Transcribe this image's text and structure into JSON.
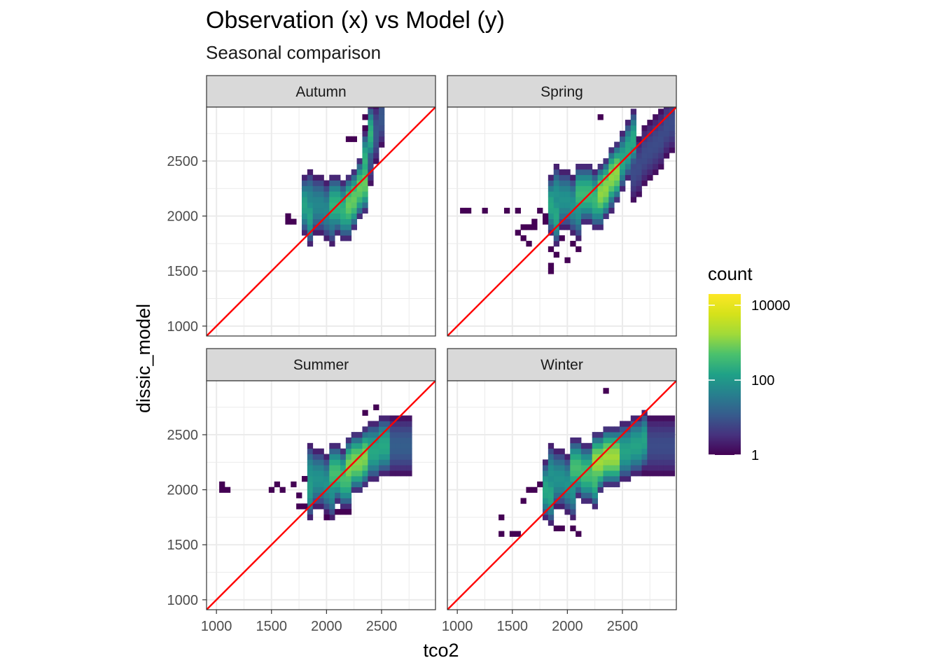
{
  "chart_data": {
    "type": "heatmap",
    "title": "Observation (x) vs Model (y)",
    "subtitle": "Seasonal comparison",
    "xlabel": "tco2",
    "ylabel": "dissic_model",
    "xlim": [
      910,
      2990
    ],
    "ylim": [
      910,
      2990
    ],
    "x_ticks": [
      1000,
      1500,
      2000,
      2500
    ],
    "y_ticks": [
      1000,
      1500,
      2000,
      2500
    ],
    "x_tick_labels": [
      "1000",
      "1500",
      "2000",
      "2500"
    ],
    "y_tick_labels": [
      "1000",
      "1500",
      "2000",
      "2500"
    ],
    "grid": true,
    "reference_line": {
      "slope": 1,
      "intercept": 0,
      "color": "#ff0000"
    },
    "bin_width": 50,
    "legend": {
      "title": "count",
      "scale": "log10",
      "breaks": [
        1,
        100,
        10000
      ],
      "break_labels": [
        "1",
        "100",
        "10000"
      ],
      "placement": "right",
      "colormap": "viridis"
    },
    "panels": [
      {
        "name": "Autumn",
        "cells": [
          [
            1800,
            1850,
            2100,
            2000,
            2.5,
            5
          ],
          [
            1850,
            2050,
            2150,
            2000,
            2.0,
            5
          ],
          [
            2050,
            2200,
            2100,
            2050,
            2.8,
            5
          ],
          [
            2200,
            2350,
            2100,
            2300,
            3.3,
            5
          ],
          [
            2300,
            2400,
            2250,
            2750,
            2.8,
            5
          ],
          [
            2380,
            2500,
            2550,
            2900,
            1.2,
            5
          ]
        ],
        "extra": [
          [
            1630,
            2000,
            0
          ],
          [
            1660,
            1970,
            0
          ],
          [
            1700,
            1930,
            0
          ],
          [
            1780,
            1860,
            0
          ],
          [
            1910,
            2030,
            0
          ],
          [
            1950,
            2060,
            0
          ],
          [
            2010,
            1820,
            0
          ],
          [
            2210,
            2690,
            0
          ],
          [
            2260,
            2720,
            0
          ],
          [
            2330,
            2880,
            0
          ],
          [
            2360,
            2820,
            0
          ]
        ]
      },
      {
        "name": "Spring",
        "cells": [
          [
            1850,
            1900,
            2100,
            2000,
            2.6,
            5
          ],
          [
            1900,
            2100,
            2200,
            2050,
            2.2,
            5
          ],
          [
            2100,
            2300,
            2200,
            2150,
            2.9,
            5
          ],
          [
            2300,
            2450,
            2200,
            2400,
            3.6,
            5
          ],
          [
            2400,
            2600,
            2300,
            2700,
            2.6,
            5
          ],
          [
            2600,
            2950,
            2400,
            2850,
            1.0,
            5
          ]
        ],
        "extra": [
          [
            1050,
            2030,
            0
          ],
          [
            1090,
            2030,
            0
          ],
          [
            1250,
            2030,
            0
          ],
          [
            1450,
            2030,
            0
          ],
          [
            1550,
            2030,
            0
          ],
          [
            1600,
            1900,
            0
          ],
          [
            1650,
            1900,
            0
          ],
          [
            1700,
            1950,
            0
          ],
          [
            1550,
            1850,
            0
          ],
          [
            1600,
            1820,
            0
          ],
          [
            1670,
            1760,
            0
          ],
          [
            1700,
            1880,
            0
          ],
          [
            1750,
            2070,
            0
          ],
          [
            1780,
            2020,
            0
          ],
          [
            1830,
            2120,
            0
          ],
          [
            1790,
            1960,
            0
          ],
          [
            1850,
            1710,
            0
          ],
          [
            1900,
            1640,
            0
          ],
          [
            1870,
            1560,
            0
          ],
          [
            1920,
            1810,
            0
          ],
          [
            1970,
            1780,
            0
          ],
          [
            2000,
            1620,
            0
          ],
          [
            2050,
            1760,
            0
          ],
          [
            2100,
            1700,
            0
          ],
          [
            1850,
            1500,
            0
          ],
          [
            1980,
            1580,
            0
          ],
          [
            2380,
            2200,
            0
          ],
          [
            2400,
            2450,
            0
          ],
          [
            2300,
            2920,
            0
          ]
        ]
      },
      {
        "name": "Summer",
        "cells": [
          [
            1830,
            1850,
            2050,
            2000,
            2.4,
            5
          ],
          [
            1850,
            2050,
            2150,
            2000,
            2.2,
            5
          ],
          [
            2050,
            2200,
            2150,
            2100,
            3.0,
            5
          ],
          [
            2200,
            2350,
            2200,
            2300,
            3.5,
            5
          ],
          [
            2350,
            2550,
            2300,
            2400,
            2.6,
            5
          ],
          [
            2550,
            2750,
            2400,
            2400,
            1.3,
            5
          ]
        ],
        "extra": [
          [
            1070,
            2030,
            0
          ],
          [
            1110,
            1980,
            0
          ],
          [
            1070,
            1980,
            0
          ],
          [
            1490,
            1980,
            0
          ],
          [
            1560,
            2030,
            0
          ],
          [
            1580,
            1980,
            0
          ],
          [
            1750,
            1830,
            0
          ],
          [
            1800,
            1830,
            0
          ],
          [
            1700,
            2030,
            0
          ],
          [
            1760,
            1930,
            0
          ],
          [
            1820,
            2080,
            0
          ],
          [
            1980,
            1770,
            0
          ],
          [
            2020,
            1830,
            0
          ],
          [
            2080,
            1790,
            0
          ],
          [
            2150,
            1800,
            0
          ],
          [
            2190,
            1790,
            0
          ],
          [
            2400,
            2080,
            0
          ],
          [
            2370,
            2700,
            0
          ],
          [
            2450,
            2750,
            0
          ]
        ]
      },
      {
        "name": "Winter",
        "cells": [
          [
            1800,
            1850,
            2000,
            1950,
            2.6,
            5
          ],
          [
            1850,
            2050,
            2150,
            2000,
            2.2,
            5
          ],
          [
            2050,
            2250,
            2200,
            2100,
            3.0,
            5
          ],
          [
            2250,
            2450,
            2250,
            2300,
            3.7,
            5
          ],
          [
            2450,
            2700,
            2300,
            2450,
            2.5,
            5
          ],
          [
            2700,
            2950,
            2400,
            2400,
            1.0,
            5
          ]
        ],
        "extra": [
          [
            1380,
            1740,
            0
          ],
          [
            1400,
            1600,
            0
          ],
          [
            1500,
            1600,
            0
          ],
          [
            1550,
            1600,
            0
          ],
          [
            1650,
            2000,
            0
          ],
          [
            1700,
            1990,
            0
          ],
          [
            1770,
            2030,
            0
          ],
          [
            1800,
            1980,
            0
          ],
          [
            1600,
            1920,
            0
          ],
          [
            1850,
            2120,
            0
          ],
          [
            1880,
            2080,
            0
          ],
          [
            1950,
            2230,
            0
          ],
          [
            1900,
            1670,
            0
          ],
          [
            1970,
            1660,
            0
          ],
          [
            2050,
            1670,
            0
          ],
          [
            2080,
            1600,
            0
          ],
          [
            2050,
            1840,
            0
          ],
          [
            2140,
            2060,
            0
          ],
          [
            2200,
            2100,
            0
          ],
          [
            2380,
            2030,
            0
          ],
          [
            2420,
            2160,
            0
          ],
          [
            2340,
            2920,
            0
          ]
        ]
      }
    ]
  }
}
